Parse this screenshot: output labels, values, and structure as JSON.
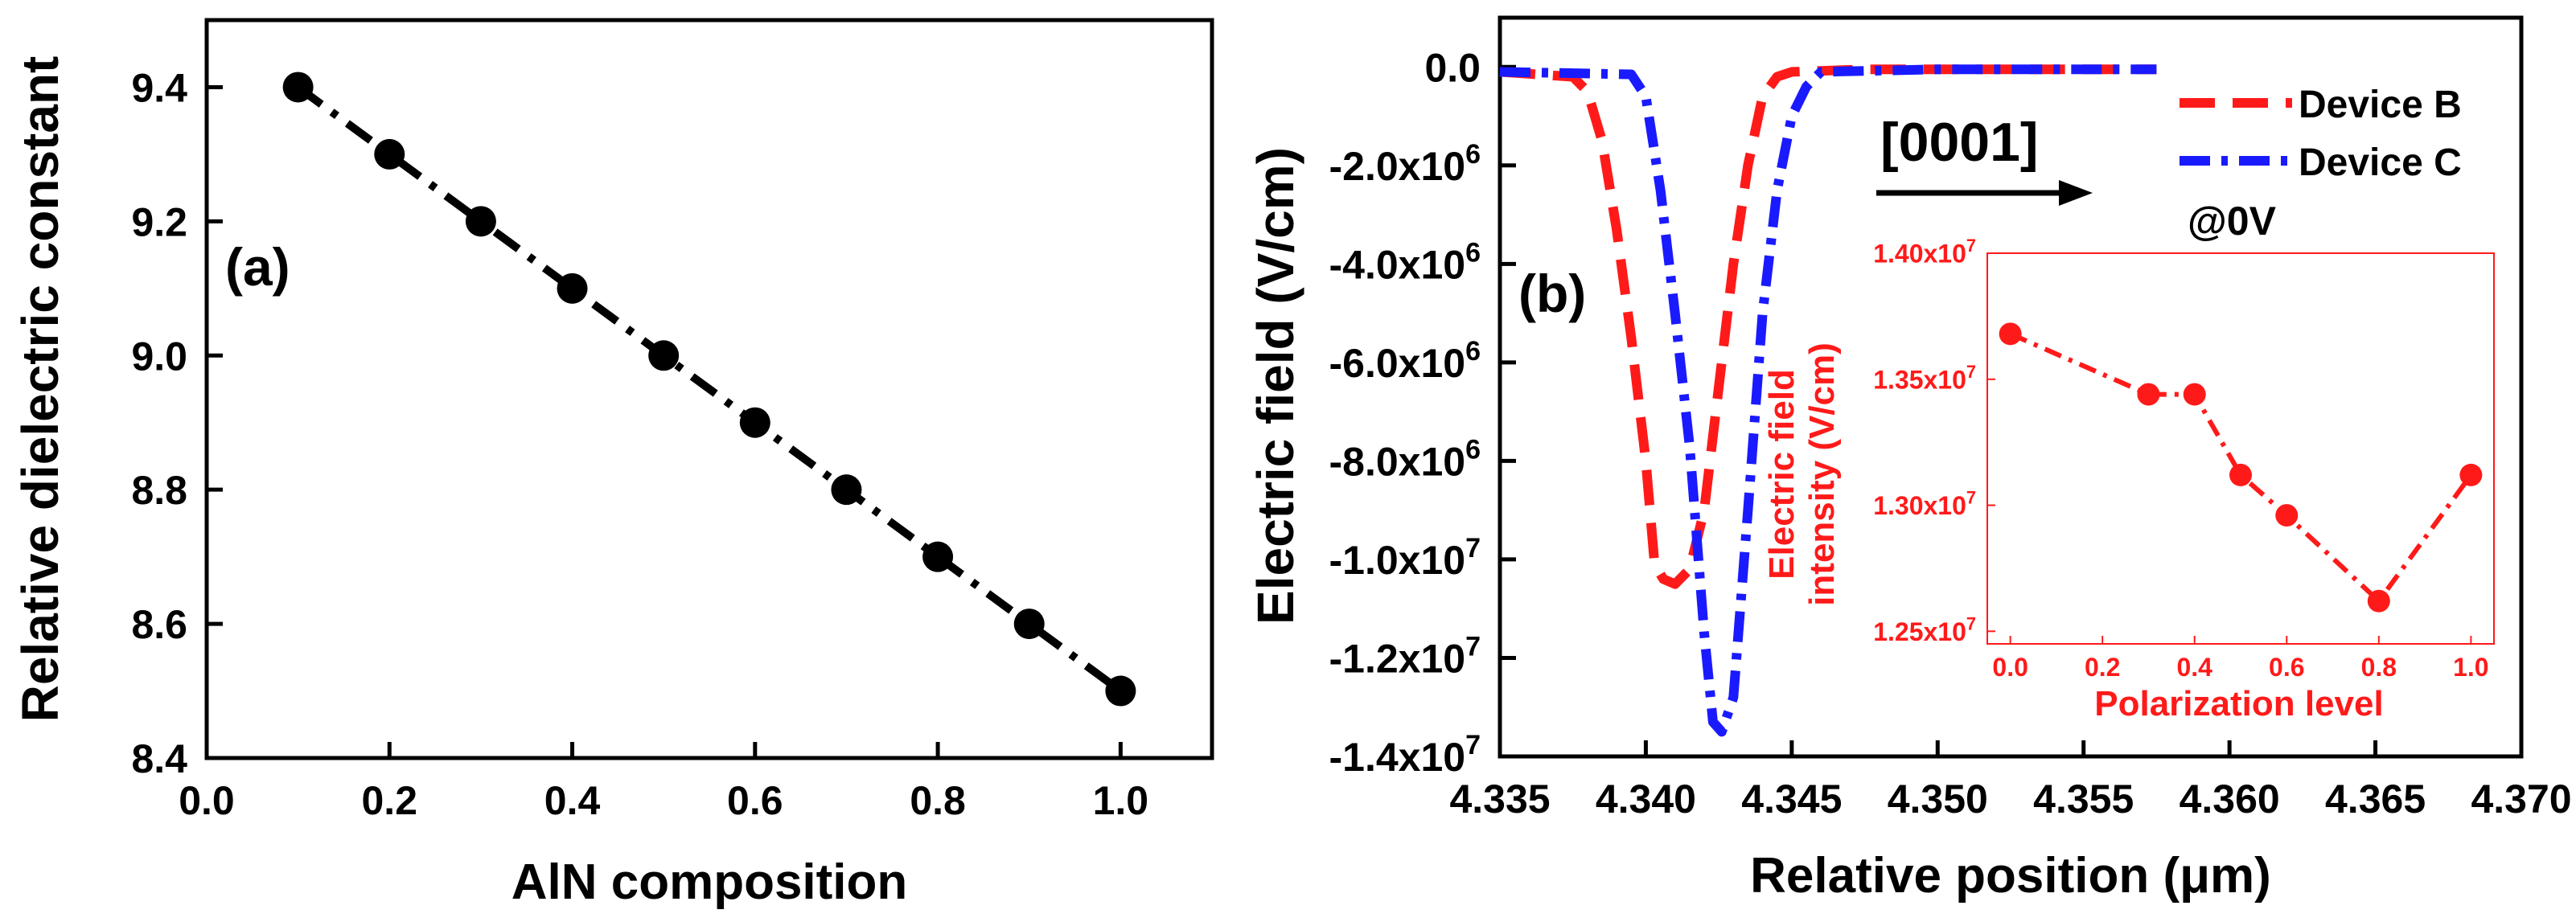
{
  "colors": {
    "axis": "#000000",
    "black_series": "#000000",
    "device_b": "#ff1a1a",
    "device_c": "#1a1aff",
    "inset": "#ff1a1a"
  },
  "chart_data": [
    {
      "type": "line",
      "panel_label": "(a)",
      "xlabel": "AlN composition",
      "ylabel": "Relative dielectric constant",
      "xlim": [
        0.0,
        1.1
      ],
      "ylim": [
        8.4,
        9.5
      ],
      "xticks": [
        "0.0",
        "0.2",
        "0.4",
        "0.6",
        "0.8",
        "1.0"
      ],
      "xtick_values": [
        0.0,
        0.2,
        0.4,
        0.6,
        0.8,
        1.0
      ],
      "yticks": [
        "8.4",
        "8.6",
        "8.8",
        "9.0",
        "9.2",
        "9.4"
      ],
      "ytick_values": [
        8.4,
        8.6,
        8.8,
        9.0,
        9.2,
        9.4
      ],
      "grid": false,
      "series": [
        {
          "name": "Relative dielectric constant",
          "x": [
            0.1,
            0.2,
            0.3,
            0.4,
            0.5,
            0.6,
            0.7,
            0.8,
            0.9,
            1.0
          ],
          "y": [
            9.4,
            9.3,
            9.2,
            9.1,
            9.0,
            8.9,
            8.8,
            8.7,
            8.6,
            8.5
          ]
        }
      ]
    },
    {
      "type": "line",
      "panel_label": "(b)",
      "xlabel": "Relative position (μm)",
      "ylabel": "Electric field (V/cm)",
      "xlim": [
        4.335,
        4.37
      ],
      "ylim": [
        -14000000,
        1000000
      ],
      "xticks": [
        "4.335",
        "4.340",
        "4.345",
        "4.350",
        "4.355",
        "4.360",
        "4.365",
        "4.370"
      ],
      "xtick_values": [
        4.335,
        4.34,
        4.345,
        4.35,
        4.355,
        4.36,
        4.365,
        4.37
      ],
      "yticks": [
        {
          "base": "0.0",
          "exp": ""
        },
        {
          "base": "-2.0x10",
          "exp": "6"
        },
        {
          "base": "-4.0x10",
          "exp": "6"
        },
        {
          "base": "-6.0x10",
          "exp": "6"
        },
        {
          "base": "-8.0x10",
          "exp": "6"
        },
        {
          "base": "-1.0x10",
          "exp": "7"
        },
        {
          "base": "-1.2x10",
          "exp": "7"
        },
        {
          "base": "-1.4x10",
          "exp": "7"
        }
      ],
      "ytick_values": [
        0,
        -2000000,
        -4000000,
        -6000000,
        -8000000,
        -10000000,
        -12000000,
        -14000000
      ],
      "grid": false,
      "legend_position": "top-right",
      "series": [
        {
          "name": "Device B",
          "x": [
            4.335,
            4.3375,
            4.338,
            4.3385,
            4.339,
            4.3395,
            4.34,
            4.3403,
            4.3406,
            4.341,
            4.3415,
            4.342,
            4.3425,
            4.343,
            4.3435,
            4.344,
            4.3445,
            4.345,
            4.3475,
            4.3575
          ],
          "y": [
            -100000,
            -200000,
            -500000,
            -1500000,
            -3300000,
            -5500000,
            -8000000,
            -10100000,
            -10400000,
            -10500000,
            -10200000,
            -9000000,
            -6500000,
            -4000000,
            -2000000,
            -600000,
            -200000,
            -100000,
            -50000,
            -50000
          ]
        },
        {
          "name": "Device C",
          "x": [
            4.335,
            4.3395,
            4.34,
            4.3405,
            4.341,
            4.3415,
            4.342,
            4.3423,
            4.3426,
            4.343,
            4.3435,
            4.344,
            4.3445,
            4.345,
            4.3455,
            4.346,
            4.35,
            4.3575
          ],
          "y": [
            -100000,
            -150000,
            -600000,
            -2500000,
            -5000000,
            -7700000,
            -11500000,
            -13300000,
            -13500000,
            -12800000,
            -9000000,
            -5000000,
            -2500000,
            -1000000,
            -400000,
            -100000,
            -50000,
            -50000
          ]
        }
      ],
      "annotations": [
        {
          "text": "[0001]",
          "kind": "arrow"
        },
        {
          "text": "@0V"
        }
      ],
      "inset": {
        "type": "line",
        "xlabel": "Polarization level",
        "ylabel_lines": [
          "Electric field",
          "intensity (V/cm)"
        ],
        "xlim": [
          -0.05,
          1.05
        ],
        "ylim": [
          12450000,
          14000000
        ],
        "xticks": [
          "0.0",
          "0.2",
          "0.4",
          "0.6",
          "0.8",
          "1.0"
        ],
        "xtick_values": [
          0.0,
          0.2,
          0.4,
          0.6,
          0.8,
          1.0
        ],
        "yticks": [
          {
            "base": "1.25x10",
            "exp": "7"
          },
          {
            "base": "1.30x10",
            "exp": "7"
          },
          {
            "base": "1.35x10",
            "exp": "7"
          },
          {
            "base": "1.40x10",
            "exp": "7"
          }
        ],
        "ytick_values": [
          12500000,
          13000000,
          13500000,
          14000000
        ],
        "series": [
          {
            "name": "Electric field intensity",
            "x": [
              0.0,
              0.3,
              0.4,
              0.5,
              0.6,
              0.8,
              1.0
            ],
            "y": [
              13680000,
              13440000,
              13440000,
              13120000,
              12960000,
              12620000,
              13120000
            ]
          }
        ]
      }
    }
  ]
}
